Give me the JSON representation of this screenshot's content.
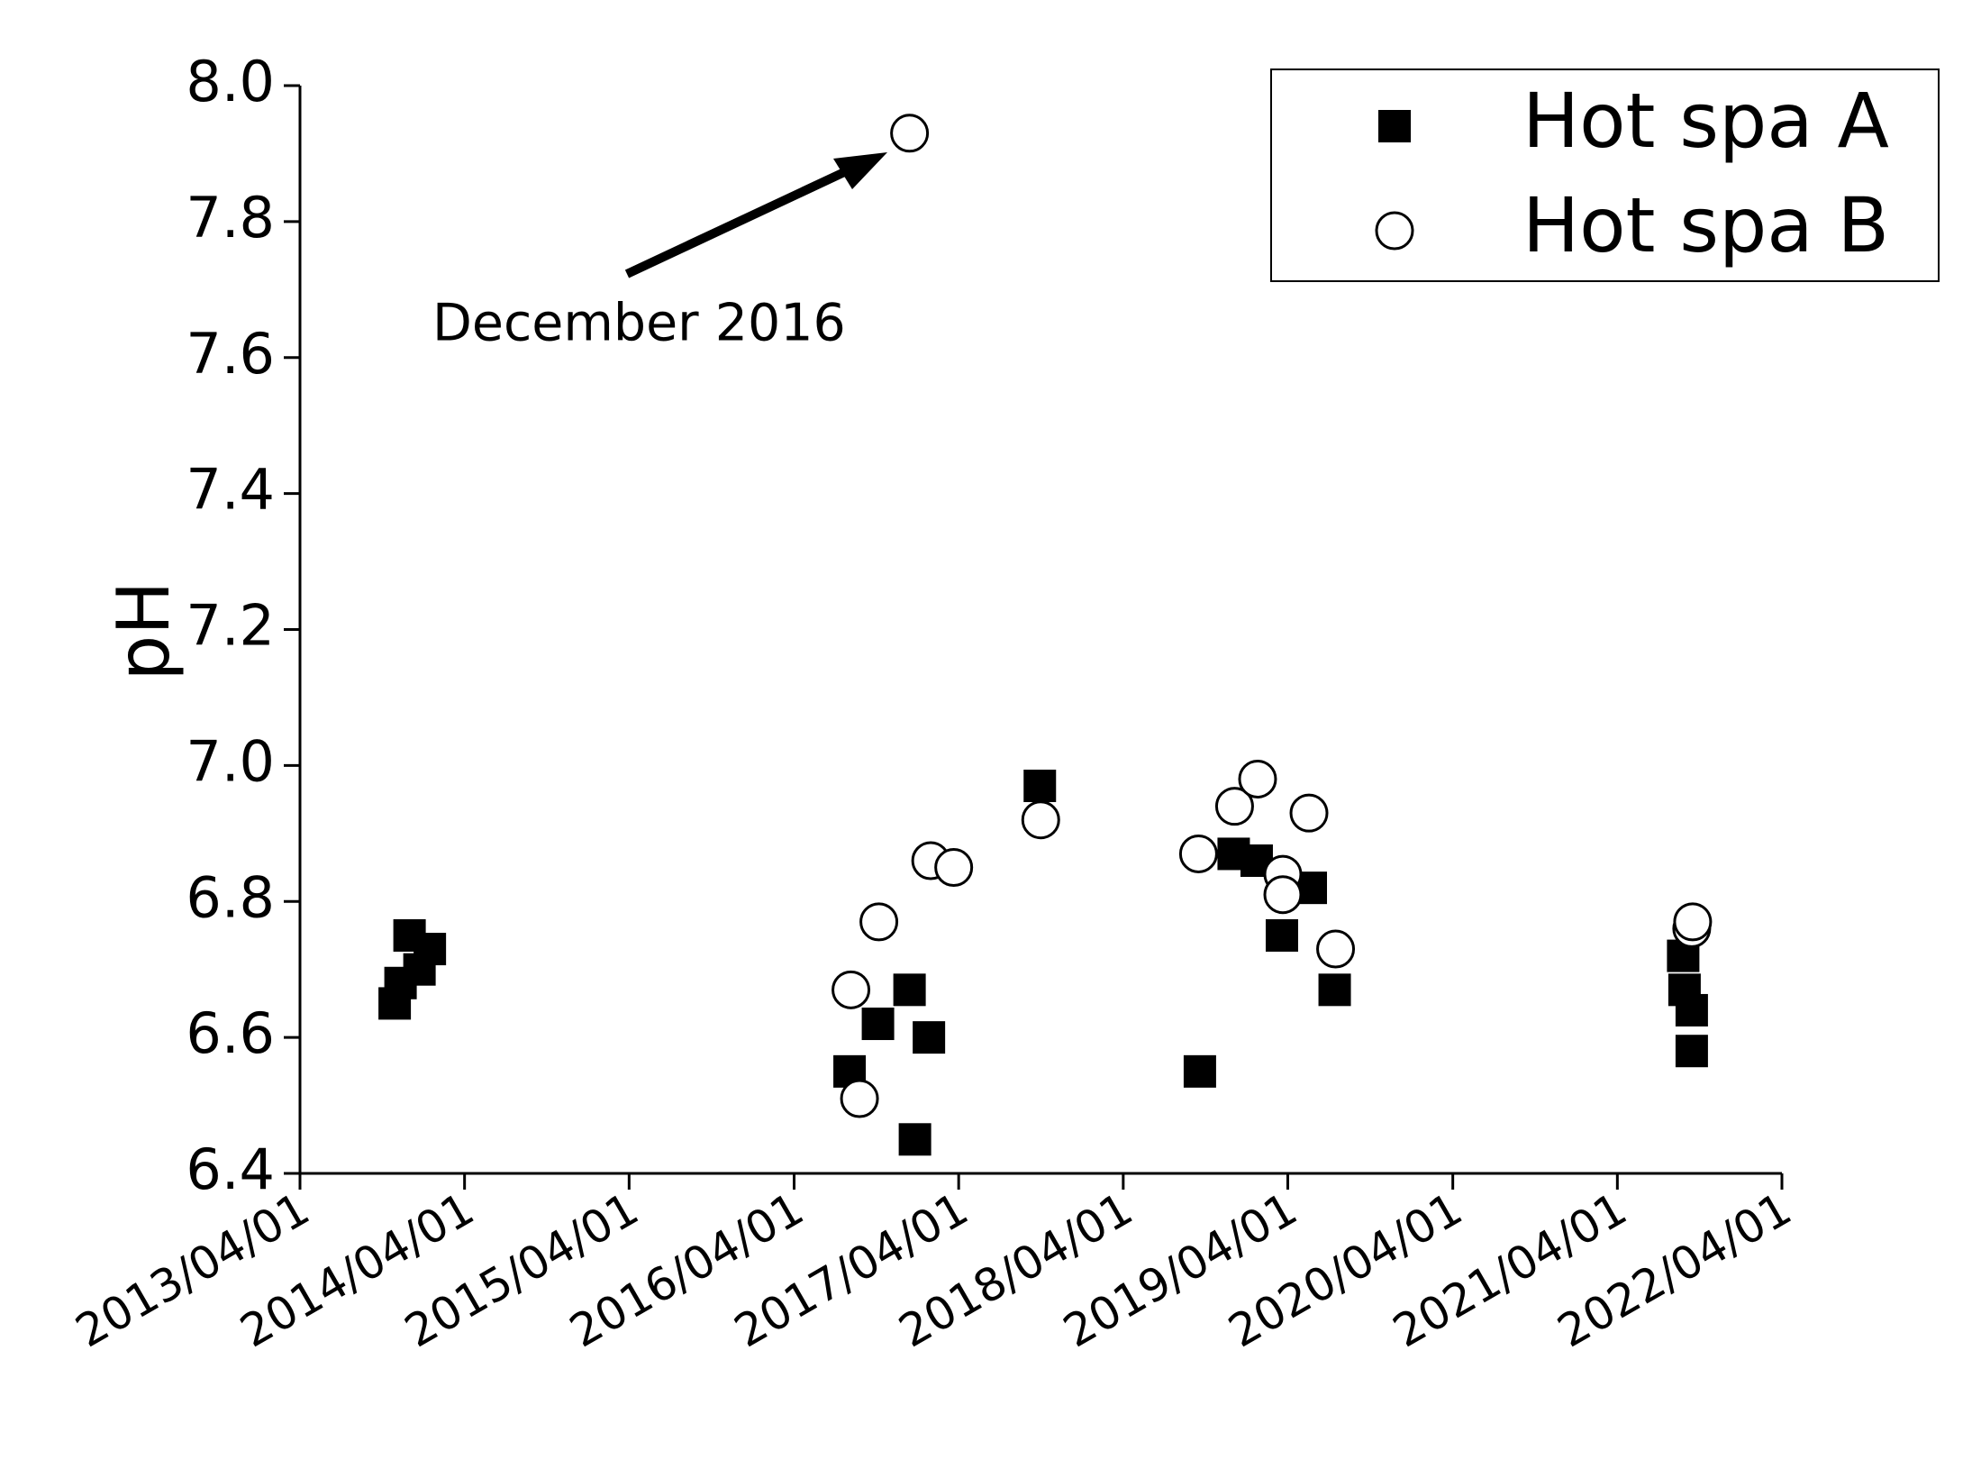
{
  "chart_data": {
    "type": "scatter",
    "y_label": "pH",
    "annotation": "December 2016",
    "xlim": [
      "2013/04/01",
      "2022/04/01"
    ],
    "xticks": [
      "2013/04/01",
      "2014/04/01",
      "2015/04/01",
      "2016/04/01",
      "2017/04/01",
      "2018/04/01",
      "2019/04/01",
      "2020/04/01",
      "2021/04/01",
      "2022/04/01"
    ],
    "ylim": [
      6.4,
      8.0
    ],
    "yticks": [
      {
        "value": 6.4,
        "label": "6.4"
      },
      {
        "value": 6.6,
        "label": "6.6"
      },
      {
        "value": 6.8,
        "label": "6.8"
      },
      {
        "value": 7.0,
        "label": "7.0"
      },
      {
        "value": 7.2,
        "label": "7.2"
      },
      {
        "value": 7.4,
        "label": "7.4"
      },
      {
        "value": 7.6,
        "label": "7.6"
      },
      {
        "value": 7.8,
        "label": "7.8"
      },
      {
        "value": 8.0,
        "label": "8.0"
      }
    ],
    "legend": "top-right",
    "series": [
      {
        "name": "Hot spa A",
        "color": "#000000",
        "marker": "square",
        "x": [
          "2013/10/28",
          "2013/11/10",
          "2013/11/30",
          "2013/12/22",
          "2014/01/14",
          "2016/08/02",
          "2016/10/04",
          "2016/12/13",
          "2016/12/25",
          "2017/01/25",
          "2017/09/28",
          "2018/09/18",
          "2018/12/02",
          "2019/01/22",
          "2019/03/19",
          "2019/05/22",
          "2019/07/14",
          "2021/08/25",
          "2021/08/28",
          "2021/09/13",
          "2021/09/13"
        ],
        "values": [
          6.65,
          6.68,
          6.75,
          6.7,
          6.73,
          6.55,
          6.62,
          6.67,
          6.45,
          6.6,
          6.97,
          6.55,
          6.87,
          6.86,
          6.75,
          6.82,
          6.67,
          6.72,
          6.67,
          6.64,
          6.58
        ]
      },
      {
        "name": "Hot spa B",
        "color": "#ffffff",
        "marker": "circle",
        "x": [
          "2016/08/05",
          "2016/08/24",
          "2016/10/06",
          "2016/12/13",
          "2017/01/29",
          "2017/03/21",
          "2017/09/30",
          "2018/09/15",
          "2018/12/04",
          "2019/01/24",
          "2019/03/21",
          "2019/03/21",
          "2019/05/18",
          "2019/07/16",
          "2021/09/13",
          "2021/09/15"
        ],
        "values": [
          6.67,
          6.51,
          6.77,
          7.93,
          6.86,
          6.85,
          6.92,
          6.87,
          6.94,
          6.98,
          6.84,
          6.81,
          6.93,
          6.73,
          6.76,
          6.77
        ]
      }
    ]
  }
}
